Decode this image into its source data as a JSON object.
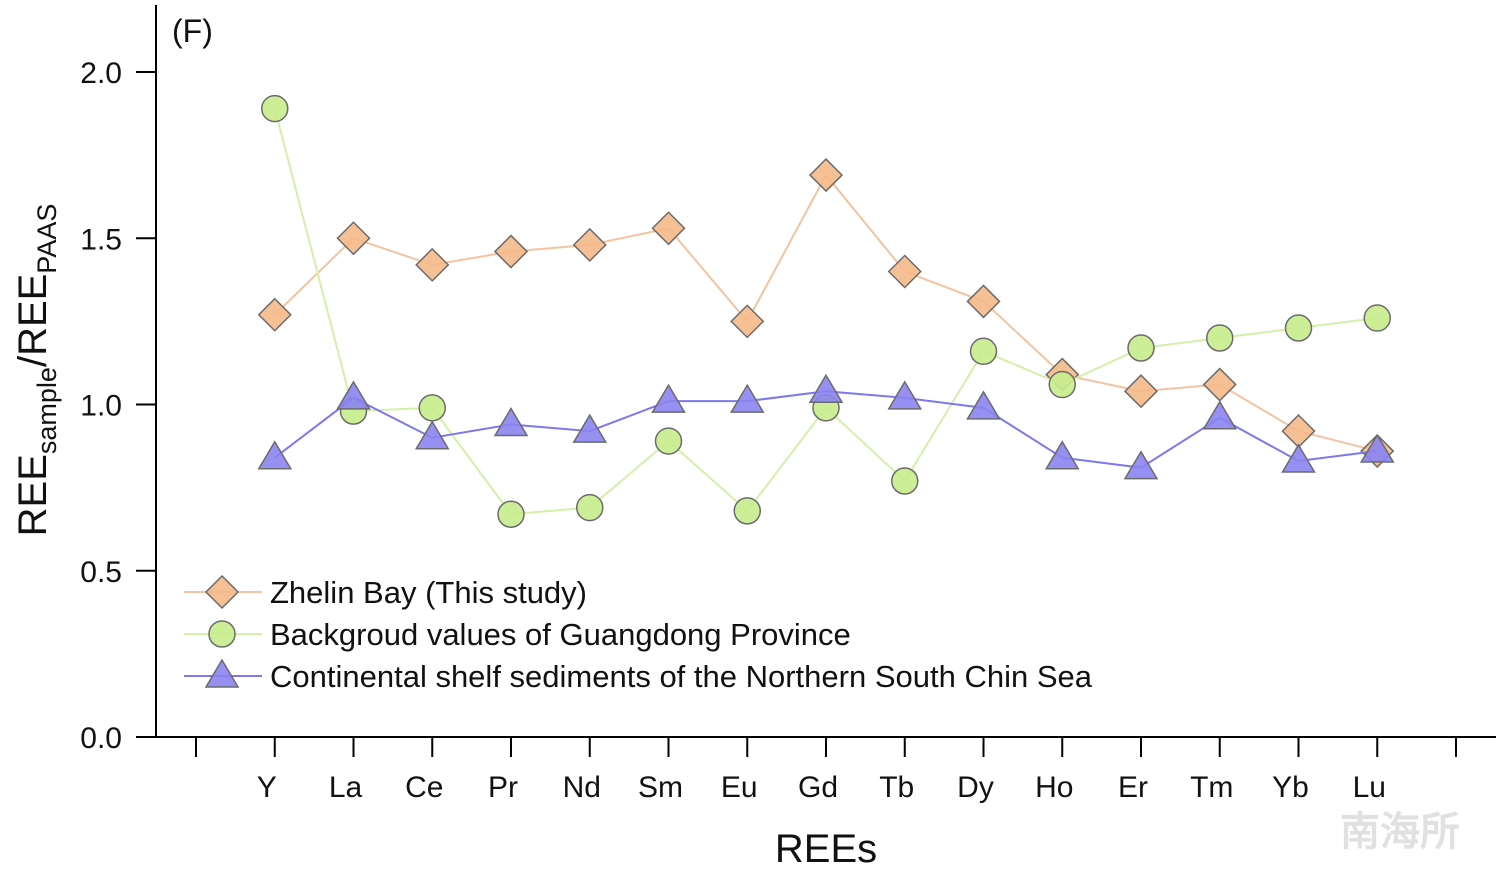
{
  "chart_data": {
    "type": "line",
    "panel_label": "(F)",
    "xlabel": "REEs",
    "ylabel": {
      "main1": "REE",
      "sub1": "sample",
      "main2": "/REE",
      "sub2": "PAAS"
    },
    "ylim": [
      0,
      2.2
    ],
    "yticks": [
      0.0,
      0.5,
      1.0,
      1.5,
      2.0
    ],
    "ytick_labels": [
      "0.0",
      "0.5",
      "1.0",
      "1.5",
      "2.0"
    ],
    "categories": [
      "Y",
      "La",
      "Ce",
      "Pr",
      "Nd",
      "Sm",
      "Eu",
      "Gd",
      "Tb",
      "Dy",
      "Ho",
      "Er",
      "Tm",
      "Yb",
      "Lu"
    ],
    "legend_position": "bottom-left",
    "series": [
      {
        "name": "Zhelin Bay (This study)",
        "marker": "diamond",
        "color": "#f5b98a",
        "line_color": "#f2c4a0",
        "values": [
          1.27,
          1.5,
          1.42,
          1.46,
          1.48,
          1.53,
          1.25,
          1.69,
          1.4,
          1.31,
          1.09,
          1.04,
          1.06,
          0.92,
          0.86
        ]
      },
      {
        "name": "Backgroud values of Guangdong Province",
        "marker": "circle",
        "color": "#c6ec8c",
        "line_color": "#d4f0a8",
        "values": [
          1.89,
          0.98,
          0.99,
          0.67,
          0.69,
          0.89,
          0.68,
          0.99,
          0.77,
          1.16,
          1.06,
          1.17,
          1.2,
          1.23,
          1.26
        ]
      },
      {
        "name": "Continental shelf sediments of the Northern South Chin Sea",
        "marker": "triangle",
        "color": "#8a84f0",
        "line_color": "#7e78ee",
        "values": [
          0.84,
          1.02,
          0.9,
          0.94,
          0.92,
          1.01,
          1.01,
          1.04,
          1.02,
          0.99,
          0.84,
          0.81,
          0.96,
          0.83,
          0.86
        ]
      }
    ]
  },
  "watermark": "南海所"
}
